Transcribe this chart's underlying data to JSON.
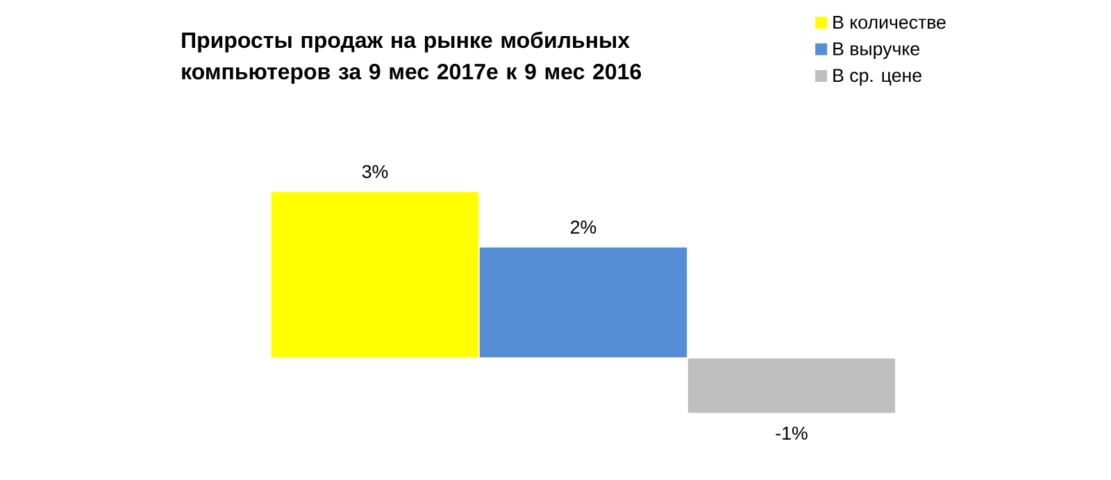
{
  "chart_data": {
    "type": "bar",
    "title": "Приросты продаж на рынке мобильных компьютеров за 9 мес 2017е к 9 мес 2016",
    "categories": [
      null
    ],
    "series": [
      {
        "name": "В количестве",
        "color": "#ffff00",
        "values": [
          3
        ],
        "value_labels": [
          "3%"
        ]
      },
      {
        "name": "В выручке",
        "color": "#558ed5",
        "values": [
          2
        ],
        "value_labels": [
          "2%"
        ]
      },
      {
        "name": "В ср. цене",
        "color": "#bfbfbf",
        "values": [
          -1
        ],
        "value_labels": [
          "-1%"
        ]
      }
    ],
    "legend": "top right"
  }
}
